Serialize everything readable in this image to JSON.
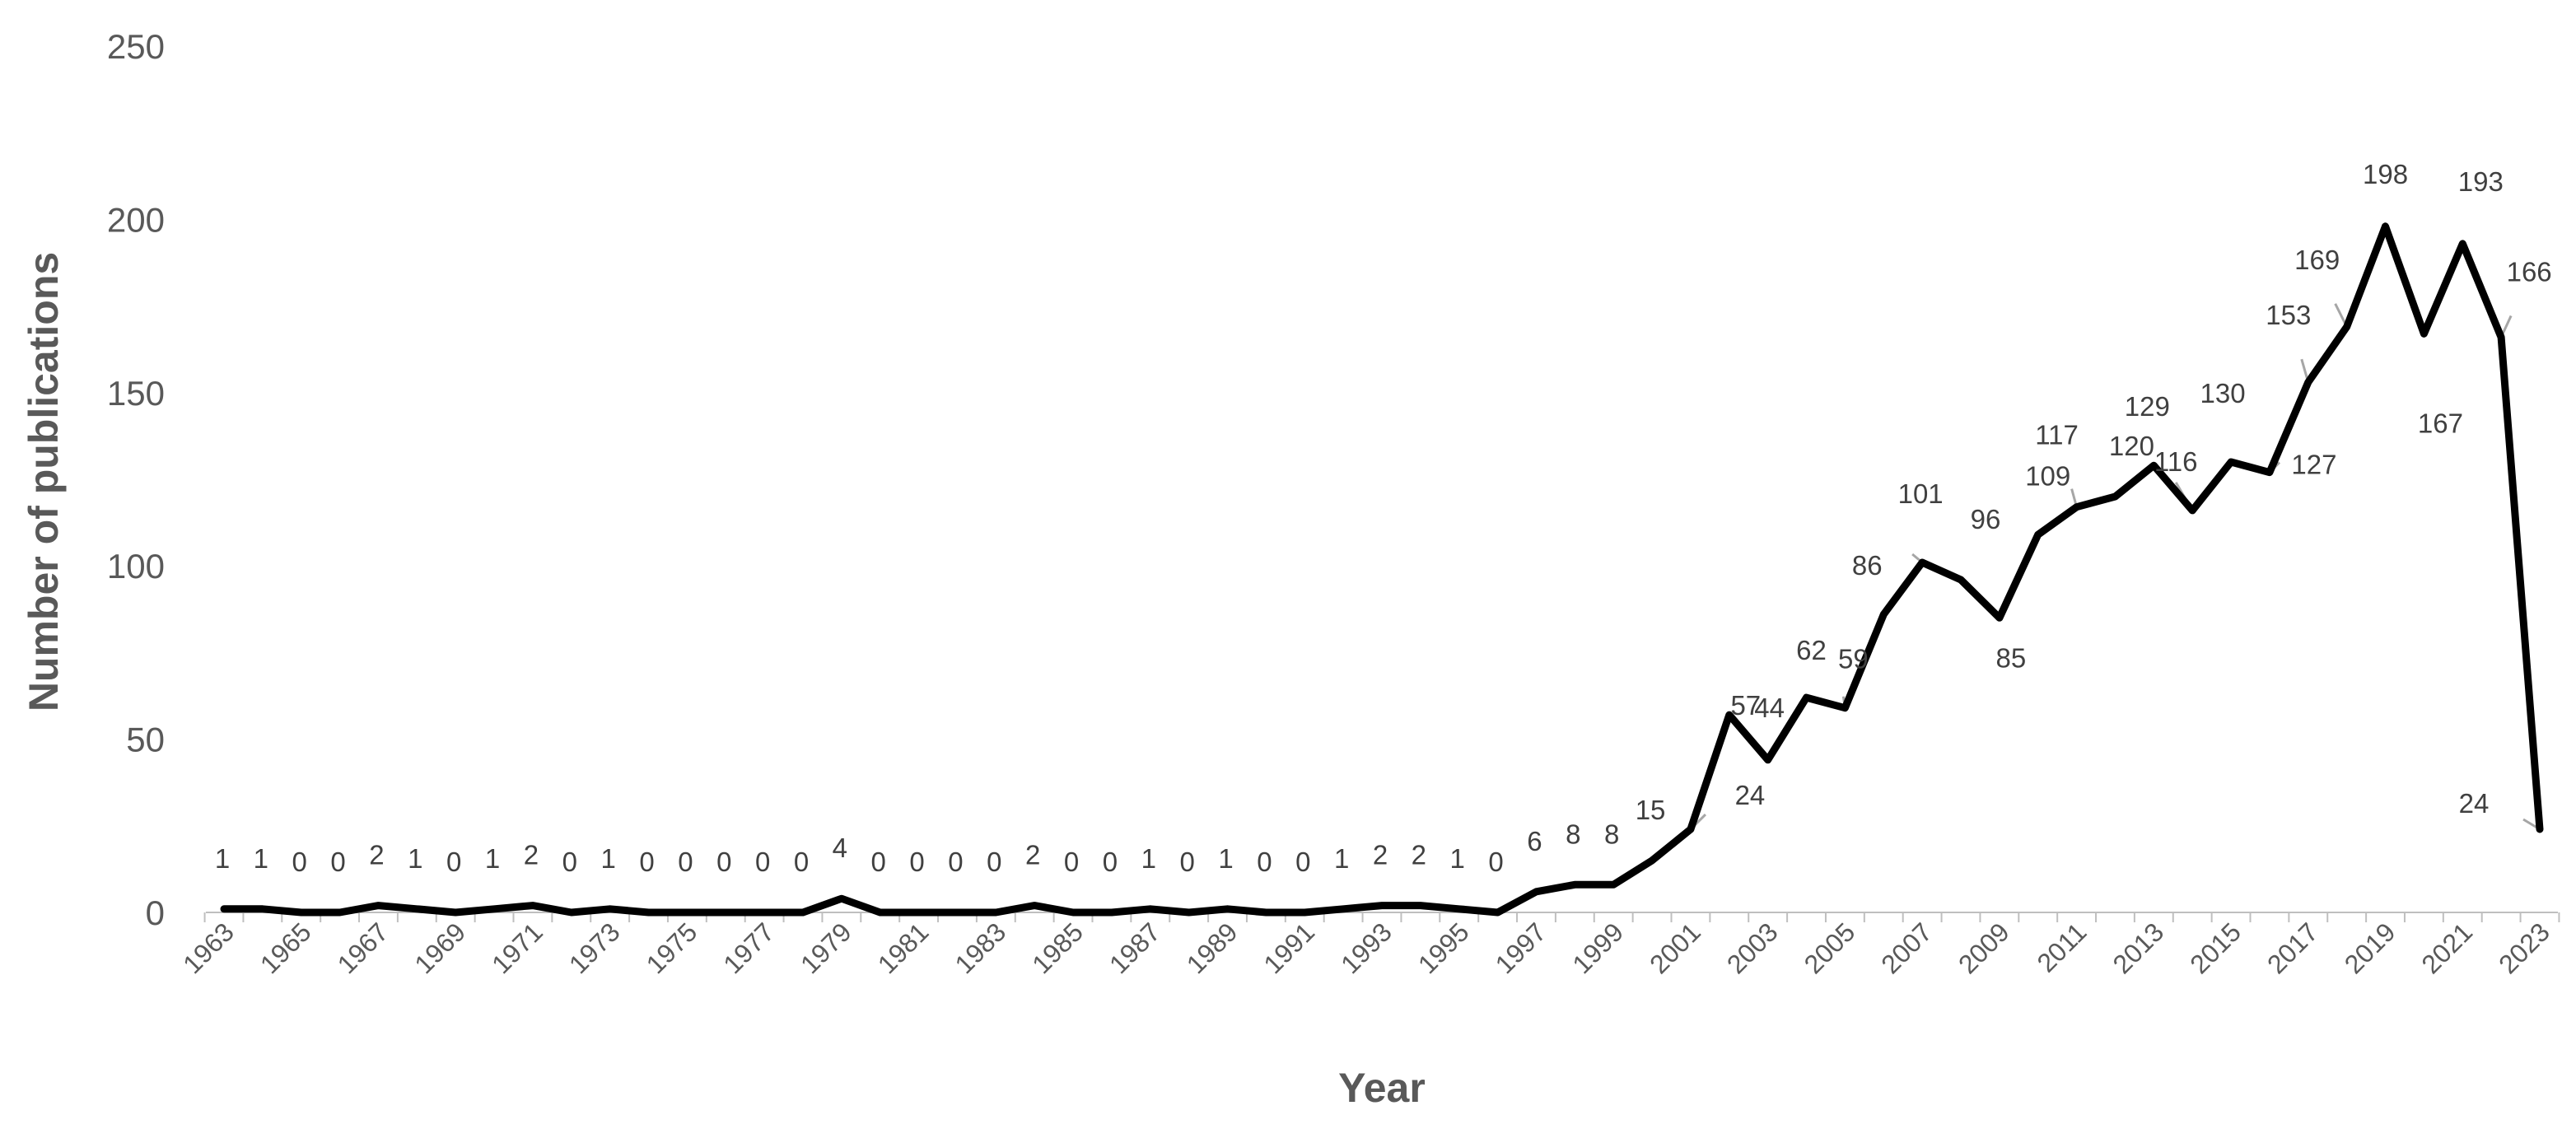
{
  "chart_data": {
    "type": "line",
    "title": "",
    "xlabel": "Year",
    "ylabel": "Number of publications",
    "ylim": [
      0,
      250
    ],
    "yticks": [
      0,
      50,
      100,
      150,
      200,
      250
    ],
    "xtick_labels": [
      "1963",
      "1965",
      "1967",
      "1969",
      "1971",
      "1973",
      "1975",
      "1977",
      "1979",
      "1981",
      "1983",
      "1985",
      "1987",
      "1989",
      "1991",
      "1993",
      "1995",
      "1997",
      "1999",
      "2001",
      "2003",
      "2005",
      "2007",
      "2009",
      "2011",
      "2013",
      "2015",
      "2017",
      "2019",
      "2021",
      "2023"
    ],
    "grid": false,
    "legend": "none",
    "line_color": "#000000",
    "x": [
      1963,
      1964,
      1965,
      1966,
      1967,
      1968,
      1969,
      1970,
      1971,
      1972,
      1973,
      1974,
      1975,
      1976,
      1977,
      1978,
      1979,
      1980,
      1981,
      1982,
      1983,
      1984,
      1985,
      1986,
      1987,
      1988,
      1989,
      1990,
      1991,
      1992,
      1993,
      1994,
      1995,
      1996,
      1997,
      1998,
      1999,
      2000,
      2001,
      2002,
      2003,
      2004,
      2005,
      2006,
      2007,
      2008,
      2009,
      2010,
      2011,
      2012,
      2013,
      2014,
      2015,
      2016,
      2017,
      2018,
      2019,
      2020,
      2021,
      2022,
      2023
    ],
    "series": [
      {
        "values": [
          1,
          1,
          0,
          0,
          2,
          1,
          0,
          1,
          2,
          0,
          1,
          0,
          0,
          0,
          0,
          0,
          4,
          0,
          0,
          0,
          0,
          2,
          0,
          0,
          1,
          0,
          1,
          0,
          0,
          1,
          2,
          2,
          1,
          0,
          6,
          8,
          8,
          15,
          24,
          57,
          44,
          62,
          59,
          86,
          101,
          96,
          85,
          109,
          117,
          120,
          129,
          116,
          130,
          127,
          153,
          169,
          198,
          167,
          193,
          166,
          24
        ]
      }
    ]
  }
}
